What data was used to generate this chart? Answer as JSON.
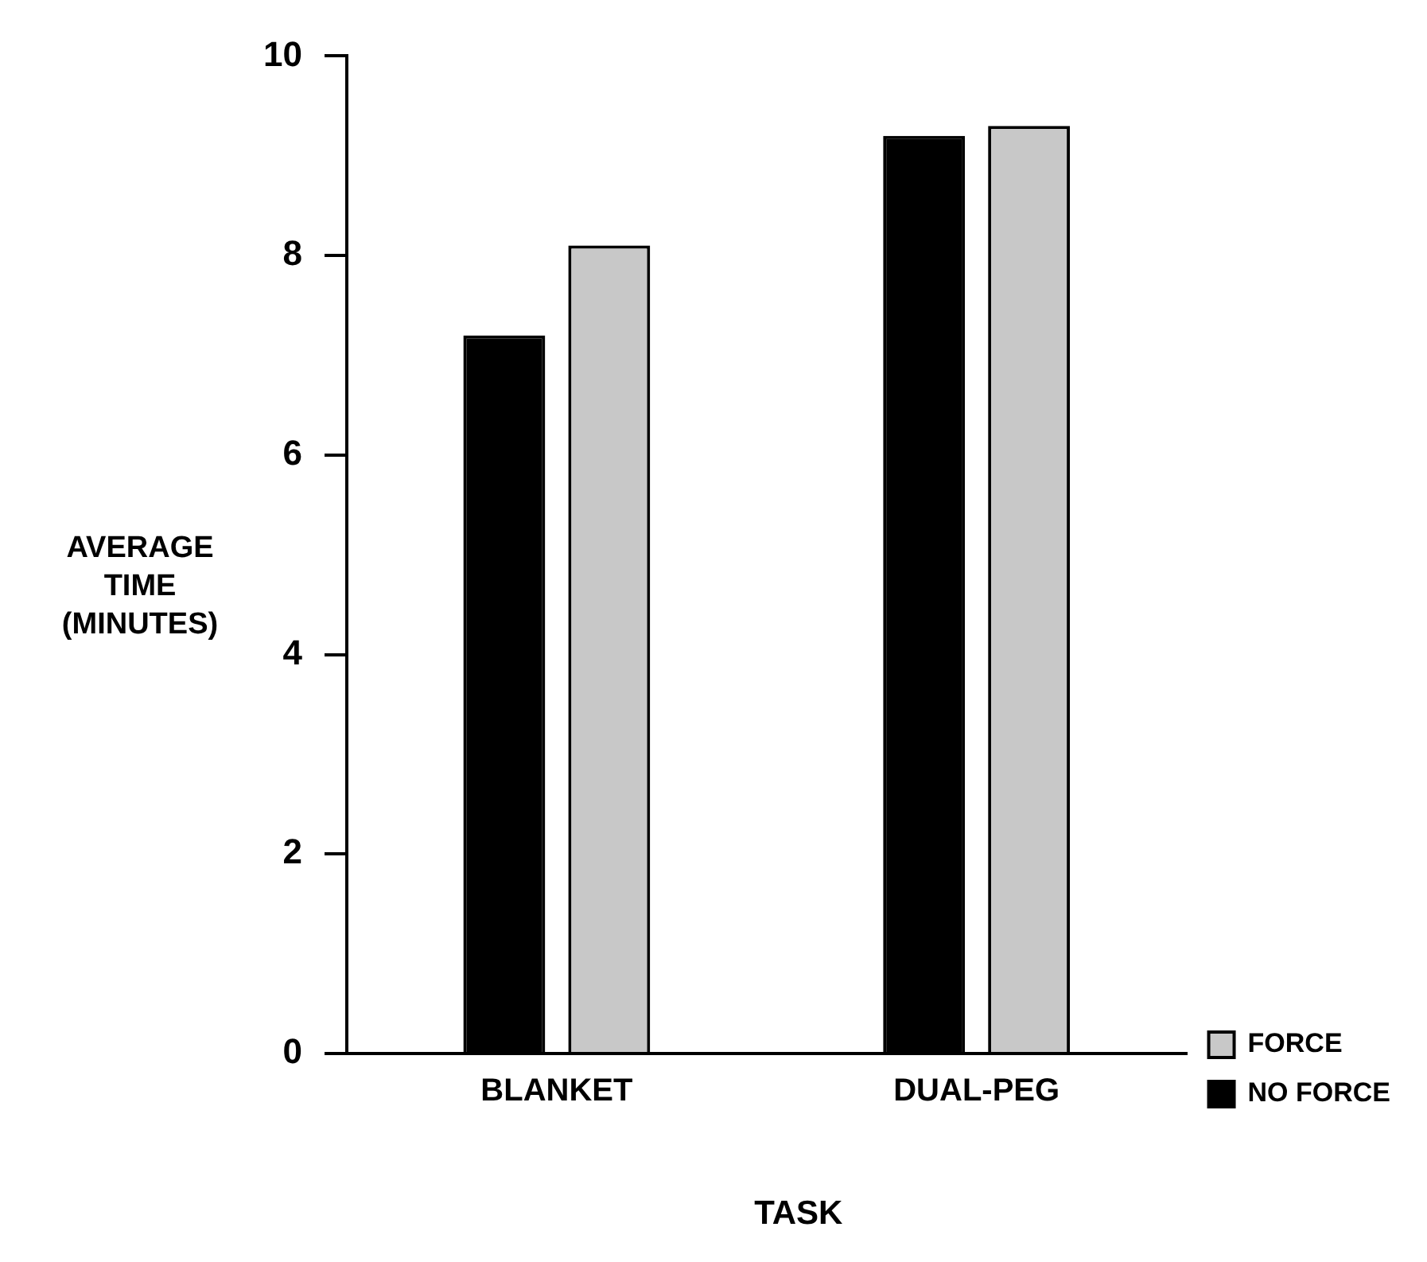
{
  "chart_data": {
    "type": "bar",
    "xlabel": "TASK",
    "ylabel": "AVERAGE TIME (MINUTES)",
    "categories": [
      "BLANKET",
      "DUAL-PEG"
    ],
    "series": [
      {
        "name": "NO FORCE",
        "color": "#000000",
        "values": [
          7.2,
          9.2
        ]
      },
      {
        "name": "FORCE",
        "color": "#c8c8c8",
        "values": [
          8.1,
          9.3
        ]
      }
    ],
    "ylim": [
      0,
      10
    ],
    "yticks": [
      0,
      2,
      4,
      6,
      8,
      10
    ],
    "grid": false,
    "legend": "bottom right"
  }
}
